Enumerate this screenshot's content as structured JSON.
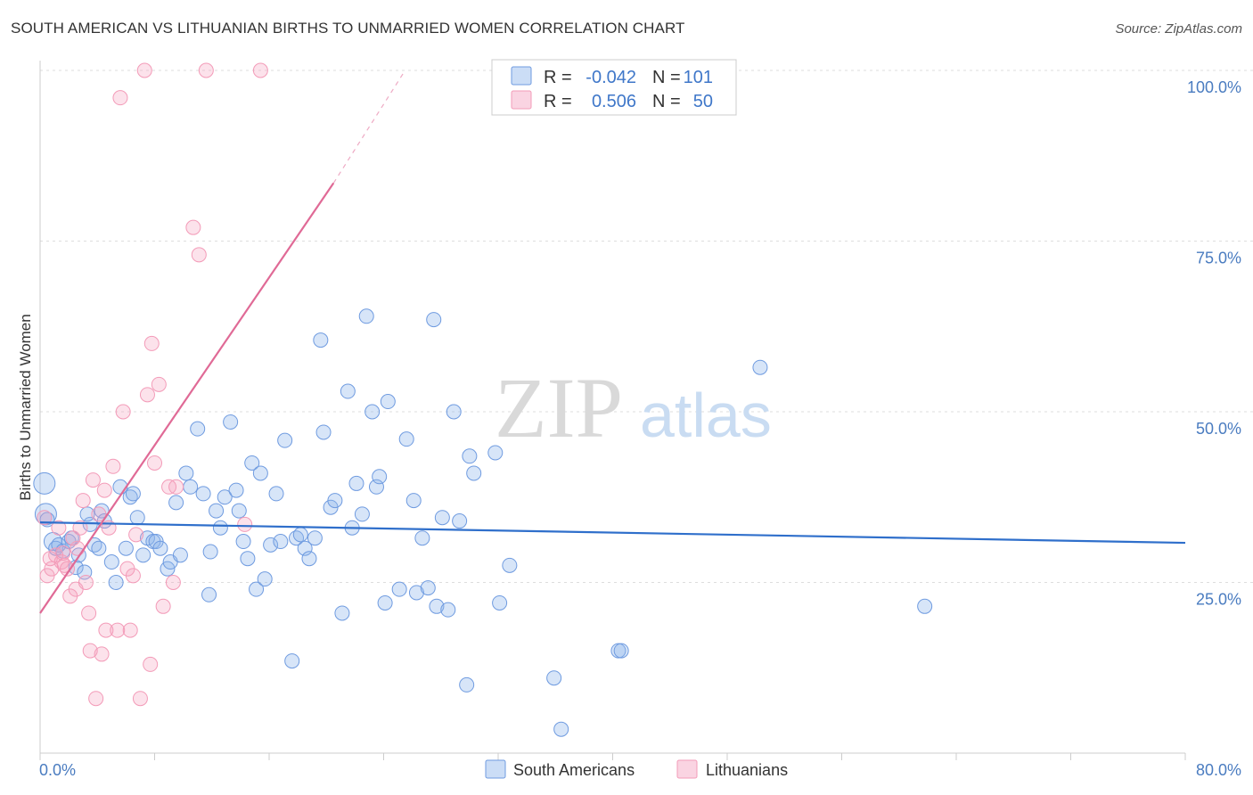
{
  "header": {
    "title": "SOUTH AMERICAN VS LITHUANIAN BIRTHS TO UNMARRIED WOMEN CORRELATION CHART",
    "source": "Source: ZipAtlas.com"
  },
  "watermark": {
    "part1": "ZIP",
    "part2": "atlas"
  },
  "legend": {
    "rows": [
      {
        "r_label": "R =",
        "r_value": "-0.042",
        "n_label": "N =",
        "n_value": "101",
        "color": "#5b8fd9"
      },
      {
        "r_label": "R =",
        "r_value": "0.506",
        "n_label": "N =",
        "n_value": "50",
        "color": "#f07fa5"
      }
    ]
  },
  "chart_data": {
    "type": "scatter",
    "title": "SOUTH AMERICAN VS LITHUANIAN BIRTHS TO UNMARRIED WOMEN CORRELATION CHART",
    "xlabel": "",
    "ylabel": "Births to Unmarried Women",
    "xlim": [
      0,
      80
    ],
    "ylim": [
      0,
      100
    ],
    "x_tick_labels": [
      "0.0%",
      "80.0%"
    ],
    "y_tick_labels": [
      "100.0%",
      "75.0%",
      "50.0%",
      "25.0%"
    ],
    "y_tick_values": [
      100,
      75,
      50,
      25
    ],
    "grid": true,
    "series": [
      {
        "name": "South Americans",
        "color": "#5b8fd9",
        "fill": "rgba(140,180,235,0.35)",
        "stroke": "#6f9be0",
        "trend": {
          "x": [
            0,
            80
          ],
          "y": [
            33.8,
            30.8
          ]
        },
        "points": [
          [
            0.3,
            39.5
          ],
          [
            0.4,
            35
          ],
          [
            0.9,
            31
          ],
          [
            1.1,
            30
          ],
          [
            1.3,
            30.5
          ],
          [
            1.6,
            29.6
          ],
          [
            2,
            31
          ],
          [
            2.2,
            31.5
          ],
          [
            2.5,
            27.2
          ],
          [
            2.7,
            29
          ],
          [
            3.1,
            26.5
          ],
          [
            3.5,
            33.5
          ],
          [
            3.8,
            30.5
          ],
          [
            4.1,
            30
          ],
          [
            4.3,
            35.5
          ],
          [
            4.5,
            34
          ],
          [
            5,
            28
          ],
          [
            5.3,
            25
          ],
          [
            5.6,
            39
          ],
          [
            6,
            30
          ],
          [
            6.3,
            37.5
          ],
          [
            6.8,
            34.5
          ],
          [
            7.2,
            29
          ],
          [
            7.5,
            31.5
          ],
          [
            7.9,
            31
          ],
          [
            8.1,
            31
          ],
          [
            8.4,
            30
          ],
          [
            8.9,
            27
          ],
          [
            9.1,
            28
          ],
          [
            9.5,
            36.7
          ],
          [
            9.8,
            29
          ],
          [
            10.2,
            41
          ],
          [
            10.5,
            39
          ],
          [
            11,
            47.5
          ],
          [
            11.4,
            38
          ],
          [
            11.8,
            23.2
          ],
          [
            11.9,
            29.5
          ],
          [
            12.3,
            35.5
          ],
          [
            12.6,
            33
          ],
          [
            12.9,
            37.5
          ],
          [
            13.3,
            48.5
          ],
          [
            13.7,
            38.5
          ],
          [
            13.9,
            35.5
          ],
          [
            14.2,
            31
          ],
          [
            14.5,
            28.5
          ],
          [
            14.8,
            42.5
          ],
          [
            15.1,
            24
          ],
          [
            15.4,
            41
          ],
          [
            15.7,
            25.5
          ],
          [
            16.1,
            30.5
          ],
          [
            16.5,
            38
          ],
          [
            16.8,
            31
          ],
          [
            17.1,
            45.8
          ],
          [
            17.6,
            13.5
          ],
          [
            17.9,
            31.5
          ],
          [
            18.2,
            32
          ],
          [
            18.5,
            30
          ],
          [
            18.8,
            28.5
          ],
          [
            19.2,
            31.5
          ],
          [
            19.6,
            60.5
          ],
          [
            19.8,
            47
          ],
          [
            20.3,
            36
          ],
          [
            20.6,
            37
          ],
          [
            21.1,
            20.5
          ],
          [
            21.5,
            53
          ],
          [
            21.8,
            33
          ],
          [
            22.1,
            39.5
          ],
          [
            22.5,
            35
          ],
          [
            22.8,
            64
          ],
          [
            23.2,
            50
          ],
          [
            23.5,
            39
          ],
          [
            23.7,
            40.5
          ],
          [
            24.1,
            22
          ],
          [
            24.3,
            51.5
          ],
          [
            25.1,
            24
          ],
          [
            25.6,
            46
          ],
          [
            26.1,
            37
          ],
          [
            26.3,
            23.5
          ],
          [
            26.7,
            31.5
          ],
          [
            27.1,
            24.2
          ],
          [
            27.5,
            63.5
          ],
          [
            27.7,
            21.5
          ],
          [
            28.1,
            34.5
          ],
          [
            28.5,
            21
          ],
          [
            28.9,
            50
          ],
          [
            29.3,
            34
          ],
          [
            29.8,
            10
          ],
          [
            30,
            43.5
          ],
          [
            30.3,
            41
          ],
          [
            31.8,
            44
          ],
          [
            32.1,
            22
          ],
          [
            32.8,
            27.5
          ],
          [
            35.9,
            11
          ],
          [
            36.4,
            3.5
          ],
          [
            40.4,
            15
          ],
          [
            40.6,
            15
          ],
          [
            50.3,
            56.5
          ],
          [
            61.8,
            21.5
          ],
          [
            0.5,
            34.2
          ],
          [
            3.3,
            35
          ],
          [
            6.5,
            38
          ]
        ],
        "sizes": {
          "0": 12,
          "1": 12,
          "2": 10
        }
      },
      {
        "name": "Lithuanians",
        "color": "#f07fa5",
        "fill": "rgba(244,160,190,0.30)",
        "stroke": "#f39bb8",
        "trend": {
          "x": [
            0,
            20.5
          ],
          "y": [
            20.5,
            83.5
          ],
          "dash_to": {
            "x": 25.5,
            "y": 100
          }
        },
        "points": [
          [
            0.3,
            34.5
          ],
          [
            0.5,
            26
          ],
          [
            0.7,
            28.5
          ],
          [
            0.8,
            27
          ],
          [
            1.1,
            29
          ],
          [
            1.3,
            33
          ],
          [
            1.5,
            28
          ],
          [
            1.7,
            27.5
          ],
          [
            1.9,
            27
          ],
          [
            2.1,
            23
          ],
          [
            2.3,
            31.5
          ],
          [
            2.5,
            24
          ],
          [
            2.6,
            30
          ],
          [
            2.8,
            33
          ],
          [
            3,
            37
          ],
          [
            3.2,
            25
          ],
          [
            3.4,
            20.5
          ],
          [
            3.5,
            15
          ],
          [
            3.7,
            40
          ],
          [
            3.9,
            8
          ],
          [
            4.1,
            35
          ],
          [
            4.3,
            14.5
          ],
          [
            4.5,
            38.5
          ],
          [
            4.6,
            18
          ],
          [
            4.8,
            33
          ],
          [
            5.1,
            42
          ],
          [
            5.4,
            18
          ],
          [
            5.6,
            96
          ],
          [
            5.8,
            50
          ],
          [
            6.1,
            27
          ],
          [
            6.3,
            18
          ],
          [
            6.5,
            26
          ],
          [
            6.7,
            32
          ],
          [
            7,
            8
          ],
          [
            7.3,
            100
          ],
          [
            7.5,
            52.5
          ],
          [
            7.7,
            13
          ],
          [
            7.8,
            60
          ],
          [
            8,
            42.5
          ],
          [
            8.3,
            54
          ],
          [
            8.6,
            21.5
          ],
          [
            9,
            39
          ],
          [
            9.3,
            25
          ],
          [
            9.5,
            39
          ],
          [
            10.7,
            77
          ],
          [
            11.1,
            73
          ],
          [
            11.6,
            100
          ],
          [
            14.3,
            33.5
          ],
          [
            15.4,
            100
          ],
          [
            1.6,
            29.3
          ]
        ]
      }
    ]
  },
  "bottom_legend": {
    "items": [
      {
        "label": "South Americans",
        "color": "#5b8fd9"
      },
      {
        "label": "Lithuanians",
        "color": "#f07fa5"
      }
    ]
  }
}
